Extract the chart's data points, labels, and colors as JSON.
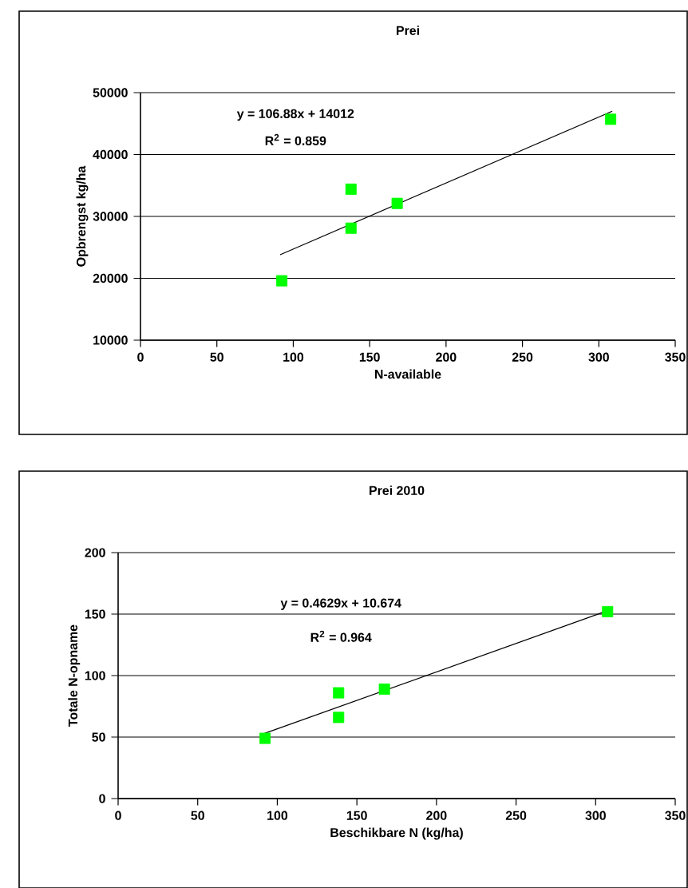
{
  "chart_data": [
    {
      "type": "scatter",
      "title": "Prei",
      "xlabel": "N-available",
      "ylabel": "Opbrengst kg/ha",
      "xlim": [
        0,
        350
      ],
      "ylim": [
        10000,
        50000
      ],
      "xticks": [
        0,
        50,
        100,
        150,
        200,
        250,
        300,
        350
      ],
      "yticks": [
        10000,
        20000,
        30000,
        40000,
        50000
      ],
      "grid": "y",
      "marker": "square",
      "annotations": [
        "y = 106.88x + 14012",
        "R$^{2}$ = 0.859"
      ],
      "series": [
        {
          "color": "#00ff00",
          "x": [
            92.5,
            137.8,
            137.8,
            168,
            307.7
          ],
          "values": [
            19600,
            34400,
            28100,
            32100,
            45700
          ]
        },
        {
          "type": "line",
          "color": "#000000",
          "marker": "none",
          "x": [
            91.4,
            308.8
          ],
          "values": [
            23800,
            47000
          ]
        }
      ]
    },
    {
      "type": "scatter",
      "title": "Prei 2010",
      "xlabel": "Beschikbare N (kg/ha)",
      "ylabel": "Totale N-opname",
      "xlim": [
        0,
        350
      ],
      "ylim": [
        0,
        200
      ],
      "xticks": [
        0,
        50,
        100,
        150,
        200,
        250,
        300,
        350
      ],
      "yticks": [
        0,
        50,
        100,
        150,
        200
      ],
      "grid": "y",
      "marker": "square",
      "annotations": [
        "y = 0.4629x + 10.674",
        "R$^{2}$ = 0.964"
      ],
      "series": [
        {
          "color": "#00ff00",
          "x": [
            92.3,
            138.5,
            138.5,
            167.3,
            307.5
          ],
          "values": [
            49,
            86,
            66,
            89,
            152
          ]
        },
        {
          "type": "line",
          "color": "#000000",
          "marker": "none",
          "x": [
            92,
            308
          ],
          "values": [
            53,
            153
          ]
        }
      ]
    }
  ]
}
